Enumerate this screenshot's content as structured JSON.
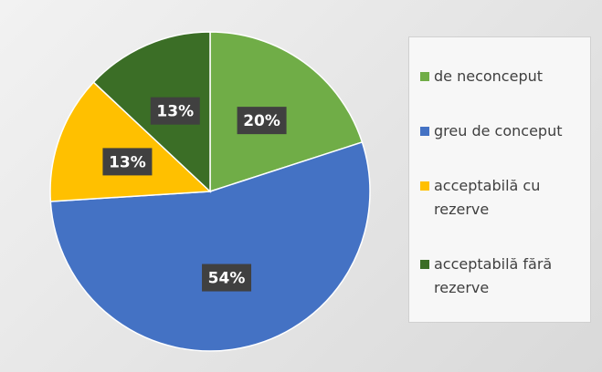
{
  "chart_data": {
    "type": "pie",
    "categories": [
      "de neconceput",
      "greu de conceput",
      "acceptabilă cu rezerve",
      "acceptabilă fără rezerve"
    ],
    "values": [
      20,
      54,
      13,
      13
    ],
    "value_labels": [
      "20%",
      "54%",
      "13%",
      "13%"
    ],
    "colors": [
      "#70ad47",
      "#4472c4",
      "#ffc000",
      "#3b6e26"
    ],
    "legend": "right"
  }
}
